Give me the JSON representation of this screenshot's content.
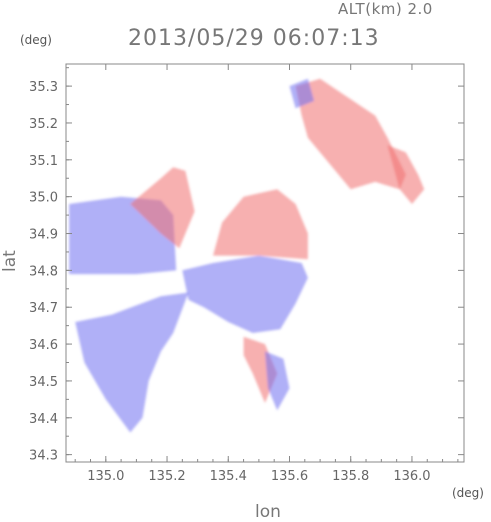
{
  "header": {
    "alt_label": "ALT(km) 2.0",
    "title": "2013/05/29 06:07:13"
  },
  "colors": {
    "positive": "#f07070",
    "negative": "#7070f0",
    "frame": "#888888"
  },
  "chart_data": {
    "type": "heatmap",
    "title": "2013/05/29 06:07:13",
    "subtitle": "ALT(km) 2.0",
    "xlabel": "lon",
    "ylabel": "lat",
    "xunit": "(deg)",
    "yunit": "(deg)",
    "xlim": [
      134.87,
      136.17
    ],
    "ylim": [
      34.28,
      35.36
    ],
    "x_ticks": [
      135.0,
      135.2,
      135.4,
      135.6,
      135.8,
      136.0
    ],
    "x_tick_labels": [
      "135.0",
      "135.2",
      "135.4",
      "135.6",
      "135.8",
      "136.0"
    ],
    "y_ticks": [
      34.3,
      34.4,
      34.5,
      34.6,
      34.7,
      34.8,
      34.9,
      35.0,
      35.1,
      35.2,
      35.3
    ],
    "y_tick_labels": [
      "34.3",
      "34.4",
      "34.5",
      "34.6",
      "34.7",
      "34.8",
      "34.9",
      "35.0",
      "35.1",
      "35.2",
      "35.3"
    ],
    "grid": false,
    "regions": [
      {
        "sign": "negative",
        "polygon": [
          [
            134.88,
            34.98
          ],
          [
            135.05,
            35.0
          ],
          [
            135.18,
            34.99
          ],
          [
            135.22,
            34.95
          ],
          [
            135.23,
            34.8
          ],
          [
            135.1,
            34.79
          ],
          [
            134.88,
            34.79
          ]
        ]
      },
      {
        "sign": "positive",
        "polygon": [
          [
            135.08,
            34.98
          ],
          [
            135.18,
            35.05
          ],
          [
            135.22,
            35.08
          ],
          [
            135.26,
            35.07
          ],
          [
            135.29,
            34.96
          ],
          [
            135.24,
            34.86
          ],
          [
            135.18,
            34.9
          ]
        ]
      },
      {
        "sign": "negative",
        "polygon": [
          [
            134.9,
            34.66
          ],
          [
            135.02,
            34.68
          ],
          [
            135.18,
            34.73
          ],
          [
            135.27,
            34.74
          ],
          [
            135.22,
            34.63
          ],
          [
            135.18,
            34.58
          ],
          [
            135.14,
            34.5
          ],
          [
            135.12,
            34.4
          ],
          [
            135.08,
            34.36
          ],
          [
            135.0,
            34.45
          ],
          [
            134.93,
            34.55
          ]
        ]
      },
      {
        "sign": "negative",
        "polygon": [
          [
            135.25,
            34.8
          ],
          [
            135.35,
            34.82
          ],
          [
            135.5,
            34.84
          ],
          [
            135.64,
            34.82
          ],
          [
            135.66,
            34.78
          ],
          [
            135.62,
            34.71
          ],
          [
            135.57,
            34.64
          ],
          [
            135.48,
            34.63
          ],
          [
            135.4,
            34.66
          ],
          [
            135.32,
            34.7
          ],
          [
            135.27,
            34.72
          ]
        ]
      },
      {
        "sign": "positive",
        "polygon": [
          [
            135.35,
            34.84
          ],
          [
            135.38,
            34.93
          ],
          [
            135.45,
            35.0
          ],
          [
            135.56,
            35.02
          ],
          [
            135.62,
            34.98
          ],
          [
            135.66,
            34.9
          ],
          [
            135.66,
            34.83
          ],
          [
            135.5,
            34.84
          ]
        ]
      },
      {
        "sign": "positive",
        "polygon": [
          [
            135.62,
            35.3
          ],
          [
            135.7,
            35.32
          ],
          [
            135.79,
            35.27
          ],
          [
            135.88,
            35.22
          ],
          [
            135.92,
            35.16
          ],
          [
            135.98,
            35.06
          ],
          [
            135.96,
            35.02
          ],
          [
            135.88,
            35.04
          ],
          [
            135.8,
            35.02
          ],
          [
            135.72,
            35.1
          ],
          [
            135.66,
            35.16
          ],
          [
            135.64,
            35.22
          ]
        ]
      },
      {
        "sign": "positive",
        "polygon": [
          [
            135.92,
            35.14
          ],
          [
            135.98,
            35.12
          ],
          [
            136.02,
            35.06
          ],
          [
            136.04,
            35.02
          ],
          [
            136.0,
            34.98
          ],
          [
            135.96,
            35.02
          ]
        ]
      },
      {
        "sign": "negative",
        "polygon": [
          [
            135.6,
            35.3
          ],
          [
            135.66,
            35.32
          ],
          [
            135.68,
            35.26
          ],
          [
            135.62,
            35.24
          ]
        ]
      },
      {
        "sign": "positive",
        "polygon": [
          [
            135.45,
            34.62
          ],
          [
            135.52,
            34.6
          ],
          [
            135.56,
            34.52
          ],
          [
            135.52,
            34.44
          ],
          [
            135.48,
            34.52
          ],
          [
            135.45,
            34.57
          ]
        ]
      },
      {
        "sign": "negative",
        "polygon": [
          [
            135.52,
            34.58
          ],
          [
            135.58,
            34.56
          ],
          [
            135.6,
            34.48
          ],
          [
            135.56,
            34.42
          ],
          [
            135.53,
            34.48
          ]
        ]
      }
    ]
  }
}
